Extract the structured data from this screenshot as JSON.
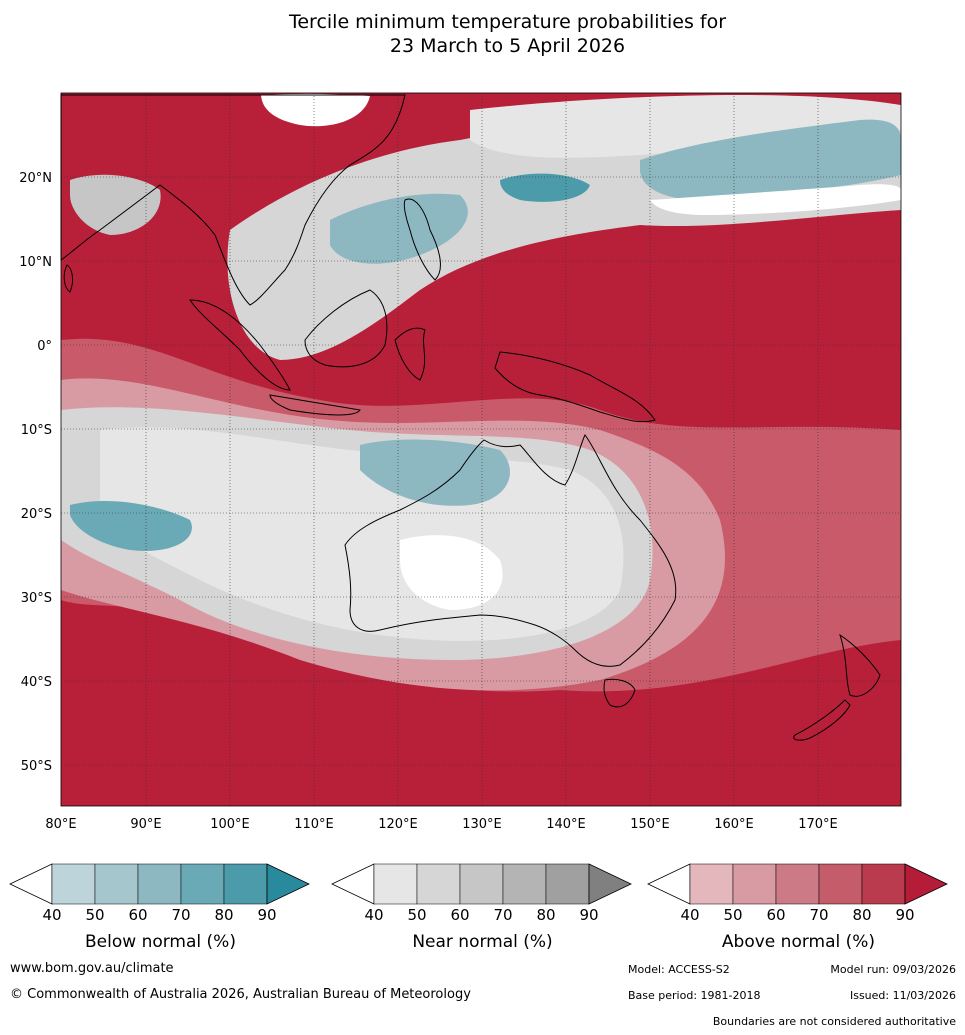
{
  "title": {
    "line1": "Tercile minimum temperature probabilities for",
    "line2": "23 March to 5 April 2026"
  },
  "map": {
    "lat_labels": [
      "20°N",
      "10°N",
      "0°",
      "10°S",
      "20°S",
      "30°S",
      "40°S",
      "50°S"
    ],
    "lon_labels": [
      "80°E",
      "90°E",
      "100°E",
      "110°E",
      "120°E",
      "130°E",
      "140°E",
      "150°E",
      "160°E",
      "170°E"
    ],
    "ocean_color": "#b8203a",
    "land_outline_color": "#000000",
    "border_color": "#777777"
  },
  "colorbars": [
    {
      "title": "Below normal (%)",
      "ticks": [
        "40",
        "50",
        "60",
        "70",
        "80",
        "90"
      ],
      "colors": [
        "#ffffff",
        "#bdd4da",
        "#a5c6cd",
        "#8db8c2",
        "#6aaab6",
        "#4b9bab",
        "#2a8a9d"
      ]
    },
    {
      "title": "Near normal (%)",
      "ticks": [
        "40",
        "50",
        "60",
        "70",
        "80",
        "90"
      ],
      "colors": [
        "#ffffff",
        "#e6e6e6",
        "#d6d6d6",
        "#c6c6c6",
        "#b4b4b4",
        "#a0a0a0",
        "#808080"
      ]
    },
    {
      "title": "Above normal (%)",
      "ticks": [
        "40",
        "50",
        "60",
        "70",
        "80",
        "90"
      ],
      "colors": [
        "#ffffff",
        "#e4b7bd",
        "#d89ba3",
        "#cc7a85",
        "#c45c6a",
        "#bb3b4e",
        "#b51c38"
      ]
    }
  ],
  "footer": {
    "website": "www.bom.gov.au/climate",
    "copyright": "© Commonwealth of Australia 2026, Australian Bureau of Meteorology",
    "model": "Model: ACCESS-S2",
    "model_run": "Model run: 09/03/2026",
    "base_period": "Base period: 1981-2018",
    "issued": "Issued: 11/03/2026",
    "disclaimer": "Boundaries are not considered authoritative"
  }
}
